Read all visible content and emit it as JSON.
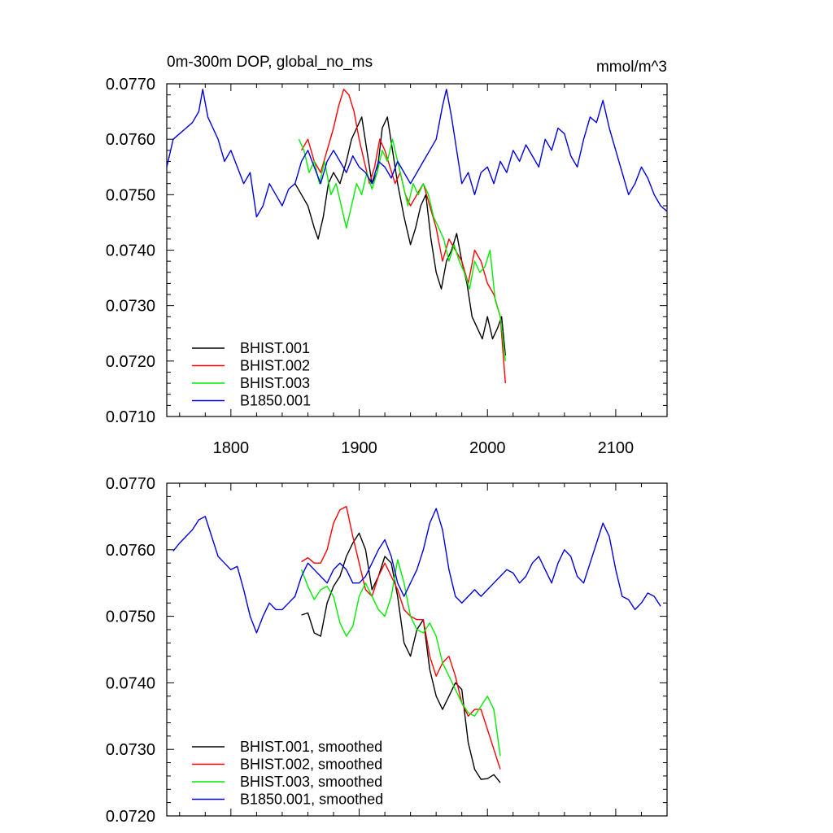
{
  "chart_data": [
    {
      "type": "line",
      "title": "0m-300m DOP, global_no_ms",
      "units_label": "mmol/m^3",
      "xlim": [
        1750,
        2140
      ],
      "ylim": [
        0.071,
        0.077
      ],
      "xticks": [
        1800,
        1900,
        2000,
        2100
      ],
      "xtick_labels": [
        "1800",
        "1900",
        "2000",
        "2100"
      ],
      "yticks": [
        0.071,
        0.072,
        0.073,
        0.074,
        0.075,
        0.076,
        0.077
      ],
      "ytick_labels": [
        "0.0710",
        "0.0720",
        "0.0730",
        "0.0740",
        "0.0750",
        "0.0760",
        "0.0770"
      ],
      "legend_position": "bottom-left",
      "series": [
        {
          "name": "BHIST.001",
          "color": "#000000",
          "x": [
            1850,
            1855,
            1860,
            1865,
            1868,
            1872,
            1876,
            1880,
            1885,
            1890,
            1894,
            1898,
            1902,
            1906,
            1910,
            1914,
            1918,
            1922,
            1926,
            1930,
            1935,
            1940,
            1944,
            1948,
            1952,
            1956,
            1960,
            1964,
            1968,
            1972,
            1976,
            1980,
            1984,
            1988,
            1992,
            1996,
            2000,
            2004,
            2008,
            2011,
            2014
          ],
          "y": [
            0.0752,
            0.075,
            0.0748,
            0.0744,
            0.0742,
            0.0746,
            0.0752,
            0.0754,
            0.0752,
            0.0756,
            0.076,
            0.0762,
            0.0764,
            0.0758,
            0.0752,
            0.0754,
            0.0762,
            0.0764,
            0.0758,
            0.0752,
            0.0746,
            0.0741,
            0.0744,
            0.0748,
            0.075,
            0.0742,
            0.0736,
            0.0733,
            0.0738,
            0.074,
            0.0743,
            0.0738,
            0.0734,
            0.0728,
            0.0726,
            0.0724,
            0.0728,
            0.0724,
            0.0726,
            0.0728,
            0.0721
          ]
        },
        {
          "name": "BHIST.002",
          "color": "#ff0000",
          "x": [
            1855,
            1860,
            1865,
            1870,
            1875,
            1880,
            1884,
            1888,
            1892,
            1896,
            1900,
            1904,
            1908,
            1912,
            1916,
            1920,
            1924,
            1928,
            1932,
            1936,
            1940,
            1945,
            1950,
            1955,
            1960,
            1965,
            1970,
            1975,
            1980,
            1985,
            1990,
            1995,
            2000,
            2005,
            2010,
            2014
          ],
          "y": [
            0.0758,
            0.076,
            0.0756,
            0.0754,
            0.0758,
            0.0762,
            0.0766,
            0.0769,
            0.0768,
            0.0765,
            0.076,
            0.0756,
            0.0752,
            0.0755,
            0.076,
            0.0758,
            0.0755,
            0.0752,
            0.0754,
            0.075,
            0.0748,
            0.075,
            0.0752,
            0.0748,
            0.0744,
            0.0738,
            0.0742,
            0.074,
            0.0738,
            0.0734,
            0.074,
            0.0738,
            0.0734,
            0.0732,
            0.0728,
            0.0716
          ]
        },
        {
          "name": "BHIST.003",
          "color": "#00ee00",
          "x": [
            1853,
            1857,
            1861,
            1865,
            1869,
            1873,
            1878,
            1882,
            1886,
            1890,
            1894,
            1898,
            1902,
            1906,
            1910,
            1914,
            1918,
            1922,
            1926,
            1930,
            1934,
            1938,
            1942,
            1946,
            1950,
            1954,
            1958,
            1962,
            1966,
            1970,
            1974,
            1978,
            1982,
            1986,
            1990,
            1994,
            1998,
            2002,
            2006,
            2010,
            2014
          ],
          "y": [
            0.076,
            0.0758,
            0.0754,
            0.0756,
            0.0752,
            0.0756,
            0.075,
            0.0752,
            0.0748,
            0.0744,
            0.0748,
            0.0752,
            0.075,
            0.0754,
            0.0751,
            0.0754,
            0.0758,
            0.0756,
            0.076,
            0.0756,
            0.0752,
            0.0748,
            0.0752,
            0.075,
            0.0752,
            0.075,
            0.0746,
            0.0744,
            0.0742,
            0.0738,
            0.0741,
            0.0738,
            0.0736,
            0.0733,
            0.0738,
            0.0736,
            0.0737,
            0.074,
            0.0731,
            0.0728,
            0.072
          ]
        },
        {
          "name": "B1850.001",
          "color": "#0000dd",
          "x": [
            1750,
            1755,
            1760,
            1765,
            1770,
            1775,
            1778,
            1782,
            1786,
            1790,
            1795,
            1800,
            1805,
            1810,
            1815,
            1820,
            1825,
            1830,
            1835,
            1840,
            1845,
            1850,
            1855,
            1860,
            1865,
            1870,
            1875,
            1880,
            1885,
            1890,
            1895,
            1900,
            1905,
            1910,
            1915,
            1920,
            1925,
            1930,
            1935,
            1940,
            1945,
            1950,
            1955,
            1960,
            1965,
            1968,
            1972,
            1976,
            1980,
            1985,
            1990,
            1995,
            2000,
            2005,
            2010,
            2015,
            2020,
            2025,
            2030,
            2035,
            2040,
            2045,
            2050,
            2055,
            2060,
            2065,
            2070,
            2075,
            2080,
            2085,
            2090,
            2095,
            2100,
            2105,
            2110,
            2115,
            2120,
            2125,
            2130,
            2135,
            2140
          ],
          "y": [
            0.0755,
            0.076,
            0.0761,
            0.0762,
            0.0763,
            0.0765,
            0.0769,
            0.0764,
            0.0762,
            0.076,
            0.0756,
            0.0758,
            0.0755,
            0.0752,
            0.0754,
            0.0746,
            0.0748,
            0.0752,
            0.075,
            0.0748,
            0.0751,
            0.0752,
            0.0756,
            0.0758,
            0.0755,
            0.0752,
            0.0756,
            0.0758,
            0.0756,
            0.0754,
            0.0757,
            0.0755,
            0.0754,
            0.0752,
            0.0756,
            0.0755,
            0.0753,
            0.0756,
            0.0754,
            0.0752,
            0.0754,
            0.0756,
            0.0758,
            0.076,
            0.0766,
            0.0769,
            0.0764,
            0.0758,
            0.0752,
            0.0754,
            0.075,
            0.0754,
            0.0755,
            0.0752,
            0.0756,
            0.0754,
            0.0758,
            0.0756,
            0.0759,
            0.0757,
            0.0755,
            0.076,
            0.0758,
            0.0762,
            0.0761,
            0.0757,
            0.0755,
            0.076,
            0.0764,
            0.0763,
            0.0767,
            0.0762,
            0.0758,
            0.0754,
            0.075,
            0.0752,
            0.0755,
            0.0753,
            0.075,
            0.0748,
            0.0747
          ]
        }
      ]
    },
    {
      "type": "line",
      "title": "",
      "xlim": [
        1750,
        2140
      ],
      "ylim": [
        0.072,
        0.077
      ],
      "yticks": [
        0.072,
        0.073,
        0.074,
        0.075,
        0.076,
        0.077
      ],
      "ytick_labels": [
        "0.0720",
        "0.0730",
        "0.0740",
        "0.0750",
        "0.0760",
        "0.0770"
      ],
      "legend_position": "bottom-left",
      "series": [
        {
          "name": "BHIST.001, smoothed",
          "color": "#000000",
          "x": [
            1855,
            1860,
            1865,
            1870,
            1875,
            1880,
            1885,
            1890,
            1895,
            1900,
            1905,
            1910,
            1915,
            1920,
            1925,
            1930,
            1935,
            1940,
            1945,
            1950,
            1955,
            1960,
            1965,
            1970,
            1975,
            1980,
            1985,
            1990,
            1995,
            2000,
            2005,
            2010
          ],
          "y": [
            0.07502,
            0.07505,
            0.07475,
            0.0747,
            0.0752,
            0.07545,
            0.0756,
            0.0759,
            0.0761,
            0.07625,
            0.076,
            0.0754,
            0.0756,
            0.0759,
            0.0758,
            0.0753,
            0.0746,
            0.0744,
            0.0748,
            0.07495,
            0.0742,
            0.0738,
            0.0736,
            0.0738,
            0.074,
            0.0739,
            0.0731,
            0.0727,
            0.07255,
            0.07256,
            0.07262,
            0.0725
          ]
        },
        {
          "name": "BHIST.002, smoothed",
          "color": "#ff0000",
          "x": [
            1855,
            1860,
            1865,
            1870,
            1875,
            1880,
            1885,
            1890,
            1895,
            1900,
            1905,
            1910,
            1915,
            1920,
            1925,
            1930,
            1935,
            1940,
            1945,
            1950,
            1955,
            1960,
            1965,
            1970,
            1975,
            1980,
            1985,
            1990,
            1995,
            2000,
            2005,
            2010
          ],
          "y": [
            0.07582,
            0.07588,
            0.0758,
            0.0758,
            0.076,
            0.0764,
            0.0766,
            0.07665,
            0.0762,
            0.0758,
            0.0754,
            0.0753,
            0.0756,
            0.0758,
            0.0756,
            0.0754,
            0.0751,
            0.075,
            0.07495,
            0.07495,
            0.0744,
            0.0741,
            0.0743,
            0.0744,
            0.0741,
            0.0737,
            0.0735,
            0.0736,
            0.0736,
            0.0733,
            0.073,
            0.0727
          ]
        },
        {
          "name": "BHIST.003, smoothed",
          "color": "#00ee00",
          "x": [
            1855,
            1860,
            1865,
            1870,
            1875,
            1880,
            1885,
            1890,
            1895,
            1900,
            1905,
            1910,
            1915,
            1920,
            1925,
            1930,
            1935,
            1940,
            1945,
            1950,
            1955,
            1960,
            1965,
            1970,
            1975,
            1980,
            1985,
            1990,
            1995,
            2000,
            2005,
            2010
          ],
          "y": [
            0.0757,
            0.07545,
            0.07525,
            0.0754,
            0.07545,
            0.0753,
            0.0749,
            0.0747,
            0.07485,
            0.0753,
            0.0755,
            0.0753,
            0.0751,
            0.075,
            0.0753,
            0.07585,
            0.0755,
            0.075,
            0.0748,
            0.07475,
            0.0749,
            0.0747,
            0.0743,
            0.0741,
            0.0739,
            0.0737,
            0.07355,
            0.0735,
            0.07365,
            0.0738,
            0.0736,
            0.0729
          ]
        },
        {
          "name": "B1850.001, smoothed",
          "color": "#0000dd",
          "x": [
            1755,
            1760,
            1765,
            1770,
            1775,
            1780,
            1785,
            1790,
            1795,
            1800,
            1805,
            1810,
            1815,
            1820,
            1825,
            1830,
            1835,
            1840,
            1845,
            1850,
            1855,
            1860,
            1865,
            1870,
            1875,
            1880,
            1885,
            1890,
            1895,
            1900,
            1905,
            1910,
            1915,
            1920,
            1925,
            1930,
            1935,
            1940,
            1945,
            1950,
            1955,
            1960,
            1965,
            1970,
            1975,
            1980,
            1985,
            1990,
            1995,
            2000,
            2005,
            2010,
            2015,
            2020,
            2025,
            2030,
            2035,
            2040,
            2045,
            2050,
            2055,
            2060,
            2065,
            2070,
            2075,
            2080,
            2085,
            2090,
            2095,
            2100,
            2105,
            2110,
            2115,
            2120,
            2125,
            2130,
            2135
          ],
          "y": [
            0.07598,
            0.0761,
            0.0762,
            0.0763,
            0.07645,
            0.0765,
            0.0762,
            0.0759,
            0.0758,
            0.0757,
            0.07575,
            0.0754,
            0.075,
            0.07475,
            0.075,
            0.0752,
            0.0751,
            0.0751,
            0.0752,
            0.0753,
            0.0756,
            0.0758,
            0.0757,
            0.0756,
            0.0755,
            0.0757,
            0.0758,
            0.0757,
            0.0755,
            0.0755,
            0.0756,
            0.0758,
            0.076,
            0.07615,
            0.0759,
            0.0755,
            0.0753,
            0.0755,
            0.0757,
            0.076,
            0.0764,
            0.07662,
            0.0763,
            0.0757,
            0.0753,
            0.0752,
            0.0753,
            0.0754,
            0.0753,
            0.0754,
            0.0755,
            0.0756,
            0.0757,
            0.07565,
            0.0755,
            0.0756,
            0.0758,
            0.0759,
            0.0757,
            0.0755,
            0.0758,
            0.076,
            0.0759,
            0.0756,
            0.0755,
            0.0758,
            0.0761,
            0.0764,
            0.0762,
            0.0757,
            0.0753,
            0.07525,
            0.0751,
            0.0752,
            0.07535,
            0.0753,
            0.07515
          ]
        }
      ]
    }
  ]
}
